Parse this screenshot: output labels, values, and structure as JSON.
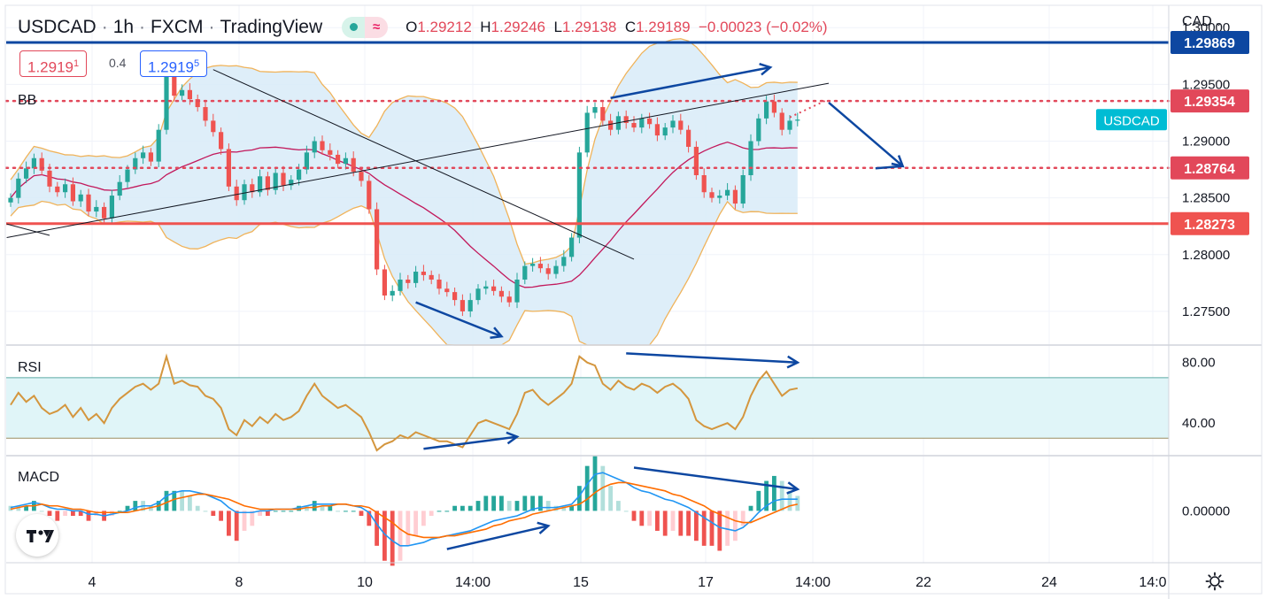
{
  "header": {
    "symbol": "USDCAD",
    "interval": "1h",
    "exchange": "FXCM",
    "platform": "TradingView",
    "sep": "·",
    "open_label": "O",
    "open": "1.29212",
    "high_label": "H",
    "high": "1.29246",
    "low_label": "L",
    "low": "1.29138",
    "close_label": "C",
    "close": "1.29189",
    "change": "−0.00023 (−0.02%)"
  },
  "bid": {
    "main": "1.2919",
    "small": "1"
  },
  "ask": {
    "main": "1.2919",
    "small": "5"
  },
  "spread": "0.4",
  "currency": "CAD",
  "currency_icon": "chevron-down-icon",
  "symbol_tag": "USDCAD",
  "colors": {
    "bull": "#26a69a",
    "bear": "#ef5350",
    "accent_blue": "#0d47a1",
    "level_red": "#e2485a",
    "band_fill": "#d8ebf8"
  },
  "chart_data": [
    {
      "type": "candlestick",
      "pane": "price",
      "indicator_label": "BB",
      "y_ticks": [
        "1.30000",
        "1.29500",
        "1.29000",
        "1.28500",
        "1.28000",
        "1.27500"
      ],
      "y_range": [
        1.2725,
        1.3015
      ],
      "x_ticks": [
        "4",
        "8",
        "10",
        "14:00",
        "15",
        "17",
        "14:00",
        "22",
        "24",
        "14:0"
      ],
      "closes": [
        1.285,
        1.2867,
        1.2876,
        1.2885,
        1.2874,
        1.286,
        1.2855,
        1.2862,
        1.2847,
        1.2853,
        1.2838,
        1.2842,
        1.2832,
        1.2852,
        1.2864,
        1.2875,
        1.2885,
        1.289,
        1.2882,
        1.291,
        1.2958,
        1.294,
        1.2945,
        1.2937,
        1.293,
        1.2918,
        1.2908,
        1.2893,
        1.286,
        1.2848,
        1.2862,
        1.2855,
        1.2869,
        1.2857,
        1.2872,
        1.2861,
        1.2866,
        1.2875,
        1.289,
        1.29,
        1.2892,
        1.2888,
        1.288,
        1.2885,
        1.2873,
        1.2865,
        1.284,
        1.2787,
        1.2764,
        1.2768,
        1.2778,
        1.2775,
        1.2785,
        1.2782,
        1.2778,
        1.277,
        1.2767,
        1.276,
        1.275,
        1.276,
        1.277,
        1.2772,
        1.2768,
        1.2763,
        1.2758,
        1.2778,
        1.279,
        1.2792,
        1.2788,
        1.2783,
        1.279,
        1.2798,
        1.2815,
        1.289,
        1.2925,
        1.293,
        1.2918,
        1.291,
        1.2922,
        1.2916,
        1.2912,
        1.292,
        1.2915,
        1.2905,
        1.2912,
        1.2918,
        1.291,
        1.2895,
        1.287,
        1.2855,
        1.285,
        1.2852,
        1.2857,
        1.2845,
        1.287,
        1.29,
        1.292,
        1.2935,
        1.2925,
        1.291,
        1.2918,
        1.2919
      ],
      "bollinger": {
        "period": 20,
        "stddev": 2
      },
      "levels": [
        {
          "price": "1.29869",
          "style": "solid",
          "color": "#0d47a1"
        },
        {
          "price": "1.29354",
          "style": "dotted",
          "color": "#e2485a"
        },
        {
          "price": "1.28764",
          "style": "dotted",
          "color": "#e2485a"
        },
        {
          "price": "1.28273",
          "style": "solid",
          "color": "#ef5350"
        }
      ],
      "annotations": [
        "trendline",
        "trendline",
        "divergence-arrow",
        "divergence-arrow",
        "projection-arrow"
      ]
    },
    {
      "type": "line",
      "pane": "rsi",
      "indicator_label": "RSI",
      "y_ticks": [
        "80.00",
        "40.00"
      ],
      "y_range": [
        22,
        88
      ],
      "band": [
        70,
        30
      ],
      "values": [
        52,
        60,
        54,
        58,
        50,
        46,
        48,
        52,
        44,
        50,
        42,
        46,
        40,
        50,
        56,
        60,
        64,
        66,
        62,
        66,
        84,
        66,
        68,
        65,
        64,
        58,
        56,
        50,
        36,
        32,
        42,
        38,
        44,
        40,
        46,
        42,
        44,
        48,
        58,
        66,
        58,
        54,
        50,
        52,
        48,
        44,
        34,
        22,
        26,
        28,
        32,
        30,
        34,
        32,
        30,
        28,
        28,
        26,
        24,
        32,
        40,
        42,
        40,
        38,
        36,
        46,
        60,
        62,
        56,
        52,
        56,
        60,
        66,
        84,
        80,
        78,
        66,
        62,
        68,
        64,
        62,
        66,
        64,
        60,
        64,
        66,
        62,
        56,
        42,
        38,
        36,
        38,
        40,
        36,
        44,
        58,
        68,
        74,
        66,
        58,
        62,
        63
      ]
    },
    {
      "type": "line",
      "pane": "macd",
      "indicator_label": "MACD",
      "y_ticks": [
        "0.00000"
      ],
      "y_range": [
        -0.0028,
        0.003
      ],
      "macd": [
        0.0002,
        0.0003,
        0.0004,
        0.0005,
        0.0004,
        0.0002,
        0.0001,
        0.0001,
        0.0,
        0.0,
        -0.0002,
        -0.0002,
        -0.0003,
        -0.0002,
        -0.0001,
        0.0,
        0.0002,
        0.0003,
        0.0003,
        0.0005,
        0.0009,
        0.0011,
        0.0012,
        0.0012,
        0.0011,
        0.001,
        0.0008,
        0.0006,
        0.0002,
        -0.0001,
        -0.0001,
        -0.0001,
        0.0,
        0.0,
        0.0001,
        0.0001,
        0.0001,
        0.0002,
        0.0003,
        0.0004,
        0.0004,
        0.0004,
        0.0004,
        0.0004,
        0.0003,
        0.0002,
        -0.0001,
        -0.0008,
        -0.0014,
        -0.0018,
        -0.0021,
        -0.0021,
        -0.002,
        -0.0019,
        -0.0017,
        -0.0016,
        -0.0015,
        -0.0014,
        -0.0013,
        -0.0012,
        -0.001,
        -0.0008,
        -0.0006,
        -0.0005,
        -0.0004,
        -0.0003,
        -0.0001,
        0.0001,
        0.0002,
        0.0002,
        0.0002,
        0.0003,
        0.0004,
        0.0009,
        0.0016,
        0.0022,
        0.0023,
        0.0021,
        0.0019,
        0.0017,
        0.0014,
        0.0012,
        0.0011,
        0.0009,
        0.0007,
        0.0006,
        0.0004,
        0.0002,
        -0.0001,
        -0.0004,
        -0.0007,
        -0.001,
        -0.0011,
        -0.0012,
        -0.001,
        -0.0006,
        -0.0001,
        0.0003,
        0.0006,
        0.0007,
        0.0007,
        0.0007
      ],
      "signal": [
        0.0001,
        0.0002,
        0.0003,
        0.0003,
        0.0004,
        0.0003,
        0.0003,
        0.0002,
        0.0001,
        0.0001,
        0.0,
        -0.0001,
        -0.0001,
        -0.0001,
        -0.0001,
        -0.0001,
        0.0,
        0.0001,
        0.0002,
        0.0003,
        0.0005,
        0.0007,
        0.0008,
        0.0009,
        0.001,
        0.001,
        0.0009,
        0.0008,
        0.0007,
        0.0005,
        0.0003,
        0.0002,
        0.0001,
        0.0001,
        0.0001,
        0.0001,
        0.0001,
        0.0001,
        0.0002,
        0.0002,
        0.0003,
        0.0003,
        0.0004,
        0.0004,
        0.0003,
        0.0003,
        0.0002,
        -0.0001,
        -0.0004,
        -0.0007,
        -0.0011,
        -0.0014,
        -0.0015,
        -0.0016,
        -0.0016,
        -0.0016,
        -0.0015,
        -0.0015,
        -0.0014,
        -0.0013,
        -0.0012,
        -0.0011,
        -0.0009,
        -0.0008,
        -0.0006,
        -0.0005,
        -0.0004,
        -0.0002,
        -0.0001,
        0.0,
        0.0001,
        0.0002,
        0.0003,
        0.0004,
        0.0007,
        0.0011,
        0.0014,
        0.0016,
        0.0017,
        0.0017,
        0.0016,
        0.0015,
        0.0014,
        0.0013,
        0.0012,
        0.001,
        0.0009,
        0.0007,
        0.0005,
        0.0003,
        0.0,
        -0.0002,
        -0.0004,
        -0.0006,
        -0.0007,
        -0.0007,
        -0.0005,
        -0.0003,
        -0.0001,
        0.0001,
        0.0003,
        0.0004
      ]
    }
  ]
}
